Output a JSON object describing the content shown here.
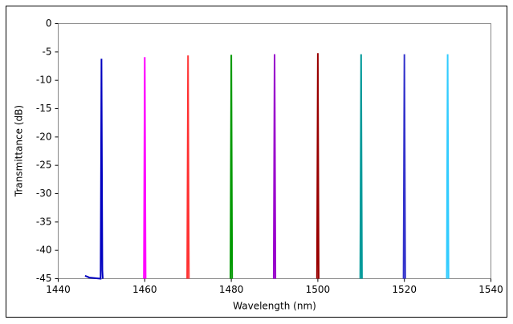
{
  "chart_data": {
    "type": "line",
    "xlabel": "Wavelength (nm)",
    "ylabel": "Transmittance (dB)",
    "xlim": [
      1440,
      1540
    ],
    "xticks": [
      1440,
      1460,
      1480,
      1500,
      1520,
      1540
    ],
    "ylim": [
      -45,
      0
    ],
    "yticks": [
      0,
      -5,
      -10,
      -15,
      -20,
      -25,
      -30,
      -35,
      -40,
      -45
    ],
    "grid": false,
    "series": [
      {
        "color": "#0000c0",
        "x": [
          1446.2,
          1446.6,
          1447.2,
          1449.8,
          1450.0,
          1450.2,
          1450.3
        ],
        "values": [
          -44.5,
          -44.6,
          -44.8,
          -45,
          -6.2,
          -43.5,
          -45
        ]
      },
      {
        "color": "#ff00ff",
        "x": [
          1459.8,
          1460.0,
          1460.2
        ],
        "values": [
          -45,
          -5.9,
          -45
        ]
      },
      {
        "color": "#ff3333",
        "x": [
          1469.8,
          1470.0,
          1470.2
        ],
        "values": [
          -45,
          -5.6,
          -45
        ]
      },
      {
        "color": "#009900",
        "x": [
          1479.8,
          1480.0,
          1480.2
        ],
        "values": [
          -45,
          -5.5,
          -45
        ]
      },
      {
        "color": "#9900cc",
        "x": [
          1489.8,
          1490.0,
          1490.2
        ],
        "values": [
          -45,
          -5.4,
          -45
        ]
      },
      {
        "color": "#990000",
        "x": [
          1499.8,
          1500.0,
          1500.2
        ],
        "values": [
          -45,
          -5.2,
          -45
        ]
      },
      {
        "color": "#009999",
        "x": [
          1509.8,
          1510.0,
          1510.2
        ],
        "values": [
          -45,
          -5.4,
          -45
        ]
      },
      {
        "color": "#3333cc",
        "x": [
          1519.8,
          1520.0,
          1520.2
        ],
        "values": [
          -45,
          -5.4,
          -45
        ]
      },
      {
        "color": "#33ccff",
        "x": [
          1529.8,
          1530.0,
          1530.2
        ],
        "values": [
          -45,
          -5.4,
          -45
        ]
      }
    ]
  }
}
